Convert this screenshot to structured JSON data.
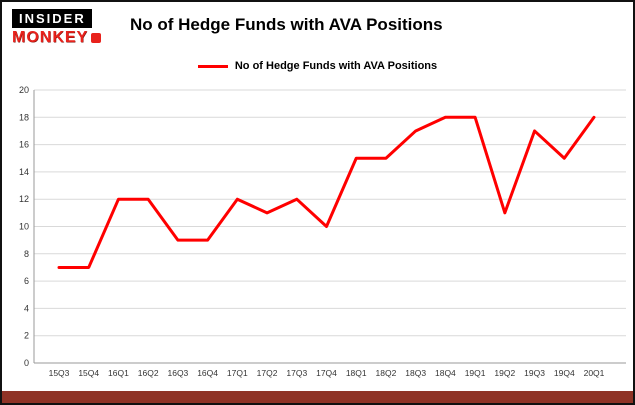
{
  "branding": {
    "logo_top": "INSIDER",
    "logo_bottom": "MONKEY"
  },
  "header": {
    "title": "No of Hedge Funds with AVA Positions"
  },
  "legend": {
    "label": "No of Hedge Funds with AVA Positions"
  },
  "colors": {
    "line": "#ff0000",
    "grid": "#d9d9d9",
    "axis": "#9a9a9a",
    "tick_text": "#333333",
    "footer_bar": "#8f3326"
  },
  "chart_data": {
    "type": "line",
    "title": "No of Hedge Funds with AVA Positions",
    "categories": [
      "15Q3",
      "15Q4",
      "16Q1",
      "16Q2",
      "16Q3",
      "16Q4",
      "17Q1",
      "17Q2",
      "17Q3",
      "17Q4",
      "18Q1",
      "18Q2",
      "18Q3",
      "18Q4",
      "19Q1",
      "19Q2",
      "19Q3",
      "19Q4",
      "20Q1"
    ],
    "series": [
      {
        "name": "No of Hedge Funds with AVA Positions",
        "color": "#ff0000",
        "values": [
          7,
          7,
          12,
          12,
          9,
          9,
          12,
          11,
          12,
          10,
          15,
          15,
          17,
          18,
          18,
          11,
          17,
          15,
          18
        ]
      }
    ],
    "xlabel": "",
    "ylabel": "",
    "ylim": [
      0,
      20
    ],
    "yticks": [
      0,
      2,
      4,
      6,
      8,
      10,
      12,
      14,
      16,
      18,
      20
    ],
    "grid": true,
    "legend_position": "top"
  }
}
